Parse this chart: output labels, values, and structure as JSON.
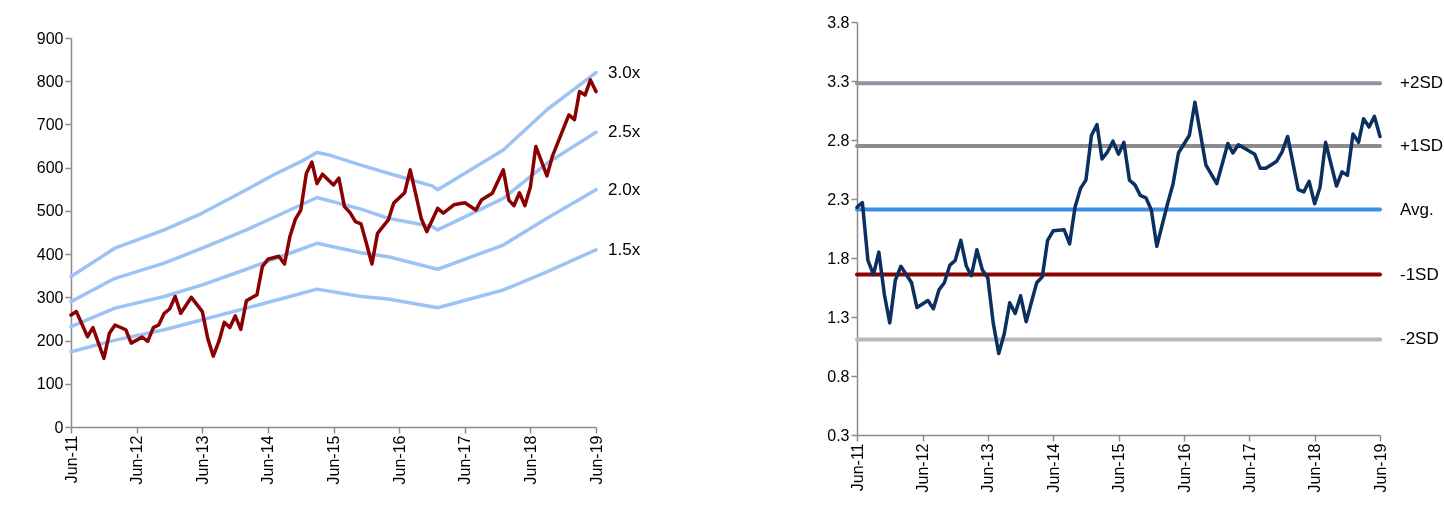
{
  "chart_data": [
    {
      "type": "line",
      "xlim": [
        "2011-06",
        "2019-06"
      ],
      "ylim": [
        0,
        900
      ],
      "xticks": [
        {
          "value": "2011-06",
          "label": "Jun-11"
        },
        {
          "value": "2012-06",
          "label": "Jun-12"
        },
        {
          "value": "2013-06",
          "label": "Jun-13"
        },
        {
          "value": "2014-06",
          "label": "Jun-14"
        },
        {
          "value": "2015-06",
          "label": "Jun-15"
        },
        {
          "value": "2016-06",
          "label": "Jun-16"
        },
        {
          "value": "2017-06",
          "label": "Jun-17"
        },
        {
          "value": "2018-06",
          "label": "Jun-18"
        },
        {
          "value": "2019-06",
          "label": "Jun-19"
        }
      ],
      "yticks": [
        0,
        100,
        200,
        300,
        400,
        500,
        600,
        700,
        800,
        900
      ],
      "series": [
        {
          "name": "3.0x",
          "color": "#9dc3f5",
          "x": [
            "2011-06",
            "2012-02",
            "2012-11",
            "2013-06",
            "2014-02",
            "2014-07",
            "2014-12",
            "2015-03",
            "2015-05",
            "2015-11",
            "2016-04",
            "2016-12",
            "2017-01",
            "2018-01",
            "2018-09",
            "2019-06"
          ],
          "values": [
            348,
            414,
            456,
            495,
            549,
            583,
            614,
            635,
            630,
            606,
            587,
            558,
            549,
            641,
            734,
            820
          ]
        },
        {
          "name": "2.5x",
          "color": "#9dc3f5",
          "x": [
            "2011-06",
            "2012-02",
            "2012-11",
            "2013-06",
            "2014-02",
            "2014-10",
            "2015-03",
            "2015-11",
            "2016-04",
            "2016-12",
            "2017-01",
            "2018-01",
            "2018-09",
            "2019-06"
          ],
          "values": [
            290,
            344,
            379,
            414,
            456,
            502,
            531,
            504,
            483,
            464,
            456,
            529,
            610,
            682
          ]
        },
        {
          "name": "2.0x",
          "color": "#9dc3f5",
          "x": [
            "2011-06",
            "2012-02",
            "2012-11",
            "2013-06",
            "2014-02",
            "2014-10",
            "2015-03",
            "2015-11",
            "2016-04",
            "2017-01",
            "2018-01",
            "2018-09",
            "2019-06"
          ],
          "values": [
            232,
            275,
            302,
            329,
            365,
            402,
            425,
            403,
            394,
            365,
            421,
            483,
            549
          ]
        },
        {
          "name": "1.5x",
          "color": "#9dc3f5",
          "x": [
            "2011-06",
            "2012-02",
            "2012-11",
            "2013-06",
            "2014-02",
            "2014-10",
            "2015-03",
            "2015-11",
            "2016-04",
            "2017-01",
            "2018-01",
            "2018-09",
            "2019-06"
          ],
          "values": [
            174,
            201,
            225,
            248,
            275,
            302,
            319,
            302,
            296,
            276,
            317,
            359,
            410
          ]
        },
        {
          "color": "#8b0000",
          "x": [
            "2011-06",
            "2011-07",
            "2011-09",
            "2011-10",
            "2011-12",
            "2012-01",
            "2012-02",
            "2012-04",
            "2012-05",
            "2012-07",
            "2012-08",
            "2012-09",
            "2012-10",
            "2012-11",
            "2012-12",
            "2013-01",
            "2013-02",
            "2013-04",
            "2013-06",
            "2013-07",
            "2013-08",
            "2013-09",
            "2013-10",
            "2013-11",
            "2013-12",
            "2014-01",
            "2014-02",
            "2014-04",
            "2014-05",
            "2014-06",
            "2014-08",
            "2014-09",
            "2014-10",
            "2014-11",
            "2014-12",
            "2015-01",
            "2015-02",
            "2015-03",
            "2015-04",
            "2015-06",
            "2015-07",
            "2015-08",
            "2015-09",
            "2015-10",
            "2015-11",
            "2015-12",
            "2016-01",
            "2016-02",
            "2016-04",
            "2016-05",
            "2016-07",
            "2016-08",
            "2016-10",
            "2016-11",
            "2017-01",
            "2017-02",
            "2017-04",
            "2017-06",
            "2017-08",
            "2017-09",
            "2017-11",
            "2018-01",
            "2018-02",
            "2018-03",
            "2018-04",
            "2018-05",
            "2018-06",
            "2018-07",
            "2018-09",
            "2018-10",
            "2019-01",
            "2019-02",
            "2019-03",
            "2019-04",
            "2019-05",
            "2019-06"
          ],
          "values": [
            259,
            267,
            209,
            230,
            159,
            217,
            236,
            225,
            194,
            208,
            198,
            230,
            236,
            263,
            273,
            302,
            263,
            300,
            267,
            205,
            164,
            198,
            242,
            230,
            257,
            226,
            292,
            306,
            371,
            388,
            395,
            377,
            440,
            481,
            502,
            587,
            613,
            563,
            585,
            560,
            576,
            510,
            496,
            475,
            470,
            425,
            377,
            448,
            479,
            518,
            542,
            595,
            483,
            452,
            506,
            495,
            514,
            519,
            502,
            525,
            541,
            595,
            525,
            512,
            542,
            512,
            556,
            649,
            581,
            626,
            722,
            711,
            776,
            768,
            803,
            776
          ]
        }
      ]
    },
    {
      "type": "line",
      "xlim": [
        "2011-06",
        "2019-06"
      ],
      "ylim": [
        0.3,
        3.8
      ],
      "xticks": [
        {
          "value": "2011-06",
          "label": "Jun-11"
        },
        {
          "value": "2012-06",
          "label": "Jun-12"
        },
        {
          "value": "2013-06",
          "label": "Jun-13"
        },
        {
          "value": "2014-06",
          "label": "Jun-14"
        },
        {
          "value": "2015-06",
          "label": "Jun-15"
        },
        {
          "value": "2016-06",
          "label": "Jun-16"
        },
        {
          "value": "2017-06",
          "label": "Jun-17"
        },
        {
          "value": "2018-06",
          "label": "Jun-18"
        },
        {
          "value": "2019-06",
          "label": "Jun-19"
        }
      ],
      "yticks": [
        0.3,
        0.8,
        1.3,
        1.8,
        2.3,
        2.8,
        3.3,
        3.8
      ],
      "series": [
        {
          "color": "#0b2f5e",
          "x": [
            "2011-06",
            "2011-07",
            "2011-08",
            "2011-09",
            "2011-10",
            "2011-11",
            "2011-12",
            "2012-01",
            "2012-02",
            "2012-04",
            "2012-05",
            "2012-07",
            "2012-08",
            "2012-09",
            "2012-10",
            "2012-11",
            "2012-12",
            "2013-01",
            "2013-02",
            "2013-03",
            "2013-04",
            "2013-05",
            "2013-06",
            "2013-07",
            "2013-08",
            "2013-09",
            "2013-10",
            "2013-11",
            "2013-12",
            "2014-01",
            "2014-03",
            "2014-04",
            "2014-05",
            "2014-06",
            "2014-08",
            "2014-09",
            "2014-10",
            "2014-11",
            "2014-12",
            "2015-01",
            "2015-02",
            "2015-03",
            "2015-04",
            "2015-05",
            "2015-06",
            "2015-07",
            "2015-08",
            "2015-09",
            "2015-10",
            "2015-11",
            "2015-12",
            "2016-01",
            "2016-03",
            "2016-04",
            "2016-05",
            "2016-07",
            "2016-08",
            "2016-10",
            "2016-12",
            "2017-02",
            "2017-03",
            "2017-04",
            "2017-07",
            "2017-08",
            "2017-09",
            "2017-11",
            "2017-12",
            "2018-01",
            "2018-03",
            "2018-04",
            "2018-05",
            "2018-06",
            "2018-07",
            "2018-08",
            "2018-10",
            "2018-11",
            "2018-12",
            "2019-01",
            "2019-02",
            "2019-03",
            "2019-04",
            "2019-05",
            "2019-06"
          ],
          "values": [
            2.23,
            2.27,
            1.78,
            1.66,
            1.85,
            1.49,
            1.25,
            1.61,
            1.73,
            1.59,
            1.38,
            1.44,
            1.37,
            1.53,
            1.59,
            1.74,
            1.78,
            1.95,
            1.73,
            1.65,
            1.87,
            1.7,
            1.63,
            1.25,
            0.99,
            1.16,
            1.42,
            1.33,
            1.48,
            1.26,
            1.59,
            1.64,
            1.95,
            2.03,
            2.04,
            1.92,
            2.23,
            2.39,
            2.46,
            2.84,
            2.93,
            2.64,
            2.7,
            2.79,
            2.68,
            2.78,
            2.46,
            2.42,
            2.33,
            2.31,
            2.21,
            1.9,
            2.26,
            2.43,
            2.69,
            2.84,
            3.12,
            2.59,
            2.43,
            2.77,
            2.69,
            2.76,
            2.68,
            2.56,
            2.56,
            2.62,
            2.7,
            2.83,
            2.38,
            2.36,
            2.45,
            2.26,
            2.4,
            2.78,
            2.41,
            2.53,
            2.5,
            2.85,
            2.78,
            2.98,
            2.91,
            3.0,
            2.83
          ]
        }
      ],
      "ref_lines": [
        {
          "axis": "y",
          "value": 3.28,
          "label": "+2SD",
          "color": "#8e939e"
        },
        {
          "axis": "y",
          "value": 2.75,
          "label": "+1SD",
          "color": "#8c8c8c"
        },
        {
          "axis": "y",
          "value": 2.21,
          "label": "Avg.",
          "color": "#3d8ee6"
        },
        {
          "axis": "y",
          "value": 1.66,
          "label": "-1SD",
          "color": "#8b0000"
        },
        {
          "axis": "y",
          "value": 1.11,
          "label": "-2SD",
          "color": "#b5b8bd"
        }
      ]
    }
  ]
}
